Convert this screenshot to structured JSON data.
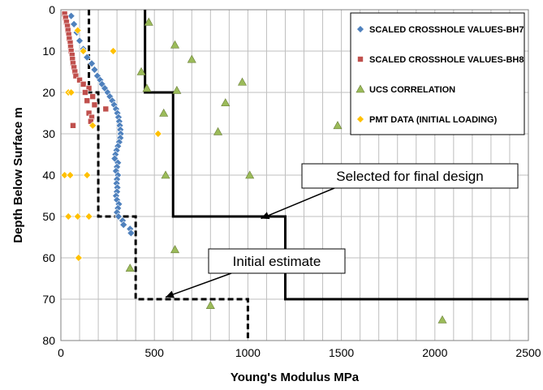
{
  "chart_data": {
    "type": "scatter",
    "title": "",
    "xlabel": "Young's Modulus  MPa",
    "ylabel": "Depth Below Surface  m",
    "xlim": [
      0,
      2500
    ],
    "ylim": [
      0,
      80
    ],
    "y_inverted": true,
    "x_ticks": [
      0,
      500,
      1000,
      1500,
      2000,
      2500
    ],
    "y_ticks": [
      0,
      10,
      20,
      30,
      40,
      50,
      60,
      70,
      80
    ],
    "grid": true,
    "legend_position": "top-right",
    "series": [
      {
        "name": "SCALED CROSSHOLE VALUES-BH7",
        "marker": "diamond",
        "color": "#4f81bd",
        "points": [
          [
            55,
            1.5
          ],
          [
            70,
            3.5
          ],
          [
            85,
            5.5
          ],
          [
            100,
            7.5
          ],
          [
            120,
            9.5
          ],
          [
            140,
            11.5
          ],
          [
            165,
            13
          ],
          [
            180,
            14.5
          ],
          [
            195,
            16
          ],
          [
            210,
            17
          ],
          [
            220,
            18
          ],
          [
            235,
            19
          ],
          [
            250,
            20
          ],
          [
            262,
            21
          ],
          [
            275,
            22
          ],
          [
            285,
            23
          ],
          [
            295,
            24
          ],
          [
            302,
            25
          ],
          [
            308,
            26
          ],
          [
            312,
            27
          ],
          [
            315,
            28
          ],
          [
            318,
            29
          ],
          [
            320,
            30
          ],
          [
            318,
            31
          ],
          [
            312,
            32
          ],
          [
            305,
            33
          ],
          [
            298,
            34
          ],
          [
            292,
            35
          ],
          [
            288,
            36
          ],
          [
            305,
            37
          ],
          [
            300,
            38
          ],
          [
            295,
            39
          ],
          [
            305,
            40
          ],
          [
            300,
            41
          ],
          [
            298,
            42
          ],
          [
            302,
            43
          ],
          [
            300,
            44
          ],
          [
            295,
            45
          ],
          [
            300,
            46
          ],
          [
            310,
            47
          ],
          [
            305,
            48
          ],
          [
            300,
            49
          ],
          [
            308,
            50
          ],
          [
            330,
            51
          ],
          [
            335,
            52
          ],
          [
            370,
            53
          ],
          [
            375,
            54
          ]
        ]
      },
      {
        "name": "SCALED CROSSHOLE VALUES-BH8",
        "marker": "square",
        "color": "#c0504d",
        "points": [
          [
            20,
            1
          ],
          [
            25,
            2
          ],
          [
            30,
            3
          ],
          [
            35,
            4
          ],
          [
            38,
            5
          ],
          [
            42,
            6
          ],
          [
            45,
            7
          ],
          [
            50,
            8
          ],
          [
            52,
            9
          ],
          [
            55,
            10
          ],
          [
            60,
            11
          ],
          [
            62,
            12
          ],
          [
            65,
            13
          ],
          [
            70,
            14
          ],
          [
            75,
            15
          ],
          [
            80,
            16
          ],
          [
            100,
            17
          ],
          [
            120,
            18
          ],
          [
            150,
            19
          ],
          [
            130,
            20
          ],
          [
            170,
            21
          ],
          [
            140,
            22
          ],
          [
            180,
            23
          ],
          [
            240,
            24
          ],
          [
            150,
            25
          ],
          [
            165,
            26
          ],
          [
            160,
            27
          ],
          [
            65,
            28
          ]
        ]
      },
      {
        "name": "UCS CORRELATION",
        "marker": "triangle",
        "color": "#9bbb59",
        "points": [
          [
            470,
            3
          ],
          [
            610,
            8.5
          ],
          [
            700,
            12
          ],
          [
            430,
            15
          ],
          [
            460,
            19
          ],
          [
            620,
            19.5
          ],
          [
            970,
            17.5
          ],
          [
            1480,
            28
          ],
          [
            880,
            22.5
          ],
          [
            550,
            25
          ],
          [
            840,
            29.5
          ],
          [
            560,
            40
          ],
          [
            1010,
            40
          ],
          [
            610,
            58
          ],
          [
            370,
            62.5
          ],
          [
            800,
            71.5
          ],
          [
            2040,
            75
          ]
        ]
      },
      {
        "name": "PMT DATA (INITIAL LOADING)",
        "marker": "diamond",
        "color": "#ffc000",
        "points": [
          [
            90,
            5
          ],
          [
            280,
            10
          ],
          [
            120,
            10
          ],
          [
            40,
            20
          ],
          [
            55,
            20
          ],
          [
            170,
            28
          ],
          [
            520,
            30
          ],
          [
            20,
            40
          ],
          [
            50,
            40
          ],
          [
            140,
            40
          ],
          [
            40,
            50
          ],
          [
            90,
            50
          ],
          [
            150,
            50
          ],
          [
            95,
            60
          ]
        ]
      }
    ],
    "lines": [
      {
        "name": "Selected for final design",
        "style": "solid",
        "color": "#000000",
        "points": [
          [
            450,
            0
          ],
          [
            450,
            20
          ],
          [
            600,
            20
          ],
          [
            600,
            50
          ],
          [
            1200,
            50
          ],
          [
            1200,
            70
          ],
          [
            2500,
            70
          ]
        ]
      },
      {
        "name": "Initial estimate",
        "style": "dashed",
        "color": "#000000",
        "points": [
          [
            150,
            0
          ],
          [
            150,
            20
          ],
          [
            200,
            20
          ],
          [
            200,
            50
          ],
          [
            400,
            50
          ],
          [
            400,
            70
          ],
          [
            1000,
            70
          ],
          [
            1000,
            80
          ]
        ]
      }
    ],
    "annotations": [
      {
        "text": "Selected for final design",
        "target": [
          1070,
          50.5
        ]
      },
      {
        "text": "Initial estimate",
        "target": [
          560,
          69.5
        ]
      }
    ]
  }
}
